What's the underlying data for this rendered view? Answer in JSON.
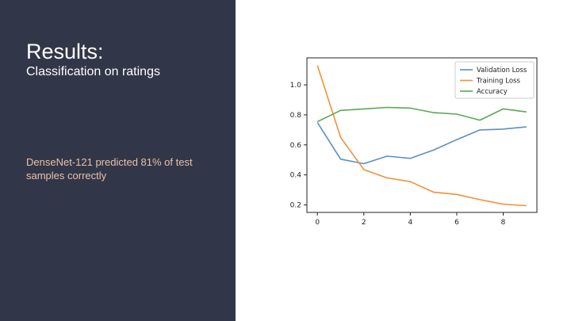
{
  "slide": {
    "title": "Results:",
    "subtitle": "Classification on ratings",
    "body": "DenseNet-121 predicted 81% of test samples correctly"
  },
  "colors": {
    "panel_bg": "#323649",
    "title_text": "#ffffff",
    "body_text": "#e8c3a6"
  },
  "chart_data": {
    "type": "line",
    "x": [
      0,
      1,
      2,
      3,
      4,
      5,
      6,
      7,
      8,
      9
    ],
    "series": [
      {
        "name": "Validation Loss",
        "color": "#5b8fc3",
        "values": [
          0.75,
          0.505,
          0.475,
          0.525,
          0.51,
          0.565,
          0.635,
          0.7,
          0.705,
          0.72
        ]
      },
      {
        "name": "Training Loss",
        "color": "#f0913a",
        "values": [
          1.13,
          0.65,
          0.435,
          0.38,
          0.355,
          0.285,
          0.27,
          0.235,
          0.205,
          0.195
        ]
      },
      {
        "name": "Accuracy",
        "color": "#5aa950",
        "values": [
          0.755,
          0.83,
          0.84,
          0.85,
          0.845,
          0.815,
          0.805,
          0.765,
          0.84,
          0.82
        ]
      }
    ],
    "xticks": [
      "0",
      "2",
      "4",
      "6",
      "8"
    ],
    "xtick_values": [
      0,
      2,
      4,
      6,
      8
    ],
    "yticks": [
      "0.2",
      "0.4",
      "0.6",
      "0.8",
      "1.0"
    ],
    "ytick_values": [
      0.2,
      0.4,
      0.6,
      0.8,
      1.0
    ],
    "xlim": [
      -0.45,
      9.45
    ],
    "ylim": [
      0.15,
      1.18
    ],
    "legend_position": "top-right",
    "grid": false,
    "title": "",
    "xlabel": "",
    "ylabel": ""
  }
}
